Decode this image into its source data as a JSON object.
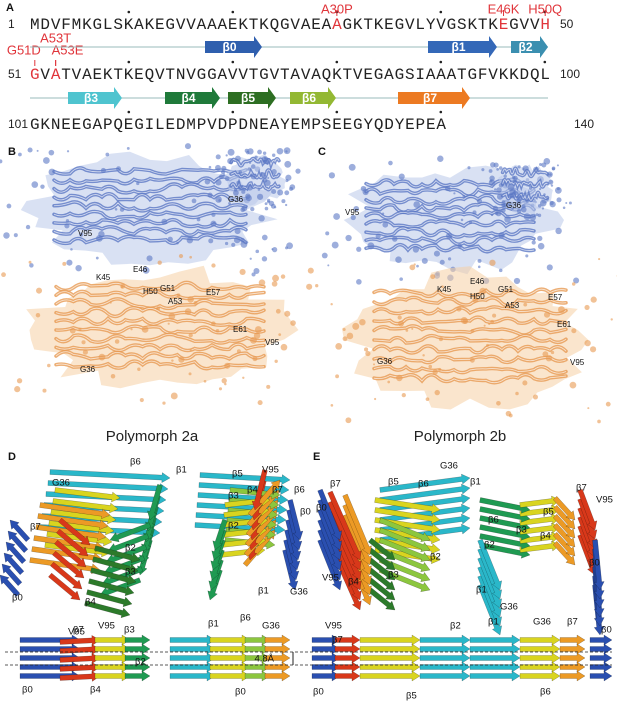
{
  "sequence_panel": {
    "letter": "A",
    "lines": [
      {
        "start": "1",
        "segments": [
          "MDVFMKGLSKAKEGVVAAAEKTKQGVAEA",
          "A",
          "GKTKEGVLYVGSKTK",
          "E",
          "GVV",
          "H"
        ],
        "end": "50"
      },
      {
        "start": "51",
        "segments": [
          "G",
          "V",
          "A",
          "TVAEKTKEQVTNVGGAVVTGVTAVAQKTVEGAGSIAAATGFVKKDQL"
        ],
        "end": "100"
      },
      {
        "start": "101",
        "segments": [
          "GKNEEGAPQEGILEDMPVDPDNEAYEMPSEEGYQDYEPEA"
        ],
        "end": "140"
      }
    ],
    "mutations": [
      "A30P",
      "E46K",
      "H50Q",
      "G51D",
      "A53T",
      "A53E"
    ],
    "strands": [
      "β0",
      "β1",
      "β2",
      "β3",
      "β4",
      "β5",
      "β6",
      "β7"
    ]
  },
  "panel_b": {
    "letter": "B",
    "residues": [
      "G36",
      "V95",
      "K45",
      "E46",
      "H50",
      "G51",
      "A53",
      "E57",
      "E61",
      "V95",
      "G36"
    ],
    "caption": "Polymorph 2a"
  },
  "panel_c": {
    "letter": "C",
    "residues": [
      "V95",
      "G36",
      "E46",
      "K45",
      "H50",
      "G51",
      "A53",
      "E57",
      "E61",
      "V95",
      "G36"
    ],
    "caption": "Polymorph 2b"
  },
  "panel_d": {
    "letter": "D",
    "labels": [
      "β6",
      "β1",
      "G36",
      "β7",
      "β2",
      "β3",
      "β0",
      "β4",
      "V95",
      "β5",
      "V95",
      "β3",
      "β4",
      "β7",
      "β6",
      "β2",
      "β0",
      "β1",
      "G36",
      "β7",
      "V95",
      "β3",
      "β0",
      "β4",
      "β2",
      "β1",
      "β6",
      "G36",
      "β0"
    ],
    "spacing": "4.8Å"
  },
  "panel_e": {
    "letter": "E",
    "labels": [
      "β7",
      "β5",
      "β6",
      "G36",
      "β1",
      "β0",
      "β2",
      "V95",
      "β4",
      "β3",
      "β6",
      "β3",
      "β5",
      "β7",
      "V95",
      "β2",
      "β4",
      "β1",
      "G36",
      "β0",
      "V95",
      "β7",
      "β0",
      "β5",
      "β2",
      "β1",
      "G36",
      "β7",
      "β0",
      "β6"
    ]
  }
}
